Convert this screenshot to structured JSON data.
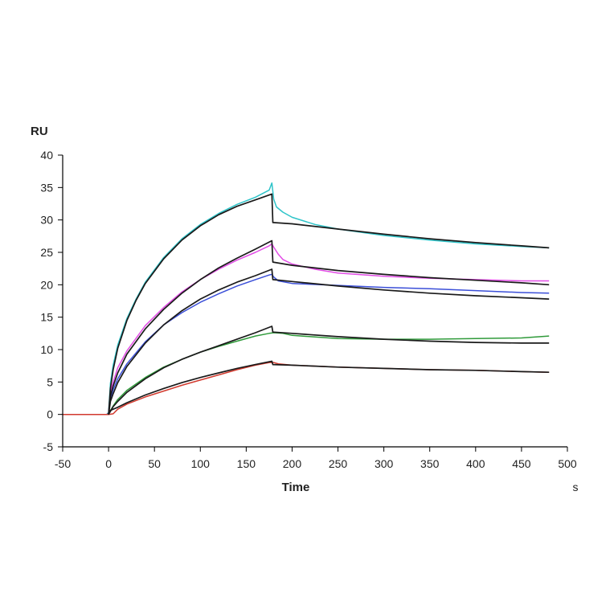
{
  "chart_data": {
    "type": "line",
    "title": "",
    "xlabel": "Time",
    "xunit": "s",
    "ylabel": "RU",
    "xlim": [
      -50,
      500
    ],
    "ylim": [
      -5,
      40
    ],
    "xticks": [
      -50,
      0,
      50,
      100,
      150,
      200,
      250,
      300,
      350,
      400,
      450,
      500
    ],
    "yticks": [
      -5,
      0,
      5,
      10,
      15,
      20,
      25,
      30,
      35,
      40
    ],
    "grid": false,
    "legend": "none",
    "series": [
      {
        "color": "#2ec4c9",
        "style": "data",
        "points": [
          [
            -50,
            0
          ],
          [
            -2,
            0
          ],
          [
            0,
            0.3
          ],
          [
            2,
            4.8
          ],
          [
            5,
            7.6
          ],
          [
            10,
            10.7
          ],
          [
            20,
            14.8
          ],
          [
            30,
            17.8
          ],
          [
            40,
            20.4
          ],
          [
            60,
            24.2
          ],
          [
            80,
            27.1
          ],
          [
            100,
            29.3
          ],
          [
            120,
            31.0
          ],
          [
            140,
            32.4
          ],
          [
            160,
            33.5
          ],
          [
            175,
            34.6
          ],
          [
            178,
            35.7
          ],
          [
            180,
            33.2
          ],
          [
            183,
            32.0
          ],
          [
            190,
            31.2
          ],
          [
            200,
            30.4
          ],
          [
            225,
            29.3
          ],
          [
            250,
            28.6
          ],
          [
            300,
            27.6
          ],
          [
            350,
            26.9
          ],
          [
            400,
            26.3
          ],
          [
            450,
            25.9
          ],
          [
            480,
            25.7
          ]
        ]
      },
      {
        "color": "#e24ce6",
        "style": "data",
        "points": [
          [
            -50,
            0
          ],
          [
            -2,
            0
          ],
          [
            0,
            0.2
          ],
          [
            2,
            3.5
          ],
          [
            5,
            5.0
          ],
          [
            10,
            7.2
          ],
          [
            20,
            9.8
          ],
          [
            40,
            13.7
          ],
          [
            60,
            16.5
          ],
          [
            80,
            18.9
          ],
          [
            100,
            20.8
          ],
          [
            120,
            22.4
          ],
          [
            140,
            23.8
          ],
          [
            160,
            25.0
          ],
          [
            175,
            26.0
          ],
          [
            178,
            26.3
          ],
          [
            180,
            25.8
          ],
          [
            185,
            24.7
          ],
          [
            190,
            23.9
          ],
          [
            200,
            23.2
          ],
          [
            225,
            22.4
          ],
          [
            250,
            21.8
          ],
          [
            300,
            21.3
          ],
          [
            350,
            21.0
          ],
          [
            400,
            20.8
          ],
          [
            450,
            20.6
          ],
          [
            480,
            20.6
          ]
        ]
      },
      {
        "color": "#3b4fd8",
        "style": "data",
        "points": [
          [
            -50,
            0
          ],
          [
            -2,
            0
          ],
          [
            0,
            0.2
          ],
          [
            2,
            2.5
          ],
          [
            5,
            3.8
          ],
          [
            10,
            5.5
          ],
          [
            20,
            7.8
          ],
          [
            40,
            11.2
          ],
          [
            60,
            13.8
          ],
          [
            80,
            15.7
          ],
          [
            100,
            17.3
          ],
          [
            120,
            18.6
          ],
          [
            140,
            19.8
          ],
          [
            160,
            20.8
          ],
          [
            175,
            21.5
          ],
          [
            178,
            21.6
          ],
          [
            180,
            21.2
          ],
          [
            185,
            20.6
          ],
          [
            200,
            20.2
          ],
          [
            250,
            19.9
          ],
          [
            300,
            19.6
          ],
          [
            350,
            19.4
          ],
          [
            400,
            19.1
          ],
          [
            450,
            18.8
          ],
          [
            480,
            18.7
          ]
        ]
      },
      {
        "color": "#2f9a3a",
        "style": "data",
        "points": [
          [
            -50,
            0
          ],
          [
            -2,
            0
          ],
          [
            0,
            0.1
          ],
          [
            5,
            1.3
          ],
          [
            10,
            2.3
          ],
          [
            20,
            3.7
          ],
          [
            40,
            5.7
          ],
          [
            60,
            7.3
          ],
          [
            80,
            8.5
          ],
          [
            100,
            9.6
          ],
          [
            120,
            10.5
          ],
          [
            140,
            11.3
          ],
          [
            160,
            12.1
          ],
          [
            175,
            12.5
          ],
          [
            180,
            12.6
          ],
          [
            190,
            12.5
          ],
          [
            200,
            12.2
          ],
          [
            250,
            11.7
          ],
          [
            300,
            11.6
          ],
          [
            350,
            11.6
          ],
          [
            400,
            11.7
          ],
          [
            450,
            11.8
          ],
          [
            480,
            12.1
          ]
        ]
      },
      {
        "color": "#d23a2e",
        "style": "data",
        "points": [
          [
            -50,
            0
          ],
          [
            -2,
            0
          ],
          [
            0,
            0
          ],
          [
            5,
            0.1
          ],
          [
            10,
            0.8
          ],
          [
            20,
            1.6
          ],
          [
            40,
            2.7
          ],
          [
            60,
            3.6
          ],
          [
            80,
            4.5
          ],
          [
            100,
            5.3
          ],
          [
            120,
            6.1
          ],
          [
            140,
            6.9
          ],
          [
            160,
            7.6
          ],
          [
            175,
            8.0
          ],
          [
            180,
            8.0
          ],
          [
            185,
            7.8
          ],
          [
            200,
            7.6
          ],
          [
            250,
            7.3
          ],
          [
            300,
            7.1
          ],
          [
            350,
            6.9
          ],
          [
            400,
            6.8
          ],
          [
            450,
            6.6
          ],
          [
            480,
            6.5
          ]
        ]
      },
      {
        "color": "#1a1a1a",
        "style": "fit",
        "points": [
          [
            0,
            0
          ],
          [
            2,
            4.0
          ],
          [
            5,
            6.9
          ],
          [
            10,
            10.2
          ],
          [
            20,
            14.5
          ],
          [
            30,
            17.6
          ],
          [
            40,
            20.2
          ],
          [
            60,
            24.0
          ],
          [
            80,
            26.9
          ],
          [
            100,
            29.1
          ],
          [
            120,
            30.8
          ],
          [
            140,
            32.1
          ],
          [
            160,
            33.1
          ],
          [
            178,
            34.0
          ],
          [
            179,
            29.6
          ],
          [
            200,
            29.4
          ],
          [
            250,
            28.6
          ],
          [
            300,
            27.8
          ],
          [
            350,
            27.1
          ],
          [
            400,
            26.5
          ],
          [
            450,
            26.0
          ],
          [
            480,
            25.7
          ]
        ]
      },
      {
        "color": "#1a1a1a",
        "style": "fit",
        "points": [
          [
            0,
            0
          ],
          [
            2,
            2.8
          ],
          [
            5,
            4.4
          ],
          [
            10,
            6.4
          ],
          [
            20,
            9.3
          ],
          [
            40,
            13.2
          ],
          [
            60,
            16.2
          ],
          [
            80,
            18.7
          ],
          [
            100,
            20.8
          ],
          [
            120,
            22.6
          ],
          [
            140,
            24.1
          ],
          [
            160,
            25.5
          ],
          [
            178,
            26.8
          ],
          [
            179,
            23.5
          ],
          [
            200,
            23.0
          ],
          [
            250,
            22.2
          ],
          [
            300,
            21.6
          ],
          [
            350,
            21.1
          ],
          [
            400,
            20.7
          ],
          [
            450,
            20.3
          ],
          [
            480,
            20.0
          ]
        ]
      },
      {
        "color": "#1a1a1a",
        "style": "fit",
        "points": [
          [
            0,
            0
          ],
          [
            2,
            2.0
          ],
          [
            5,
            3.2
          ],
          [
            10,
            4.9
          ],
          [
            20,
            7.4
          ],
          [
            40,
            11.0
          ],
          [
            60,
            13.8
          ],
          [
            80,
            16.0
          ],
          [
            100,
            17.8
          ],
          [
            120,
            19.2
          ],
          [
            140,
            20.4
          ],
          [
            160,
            21.4
          ],
          [
            178,
            22.4
          ],
          [
            179,
            20.8
          ],
          [
            200,
            20.5
          ],
          [
            250,
            19.8
          ],
          [
            300,
            19.2
          ],
          [
            350,
            18.7
          ],
          [
            400,
            18.3
          ],
          [
            450,
            18.0
          ],
          [
            480,
            17.8
          ]
        ]
      },
      {
        "color": "#1a1a1a",
        "style": "fit",
        "points": [
          [
            0,
            0
          ],
          [
            5,
            1.2
          ],
          [
            10,
            2.0
          ],
          [
            20,
            3.4
          ],
          [
            40,
            5.5
          ],
          [
            60,
            7.2
          ],
          [
            80,
            8.5
          ],
          [
            100,
            9.6
          ],
          [
            120,
            10.6
          ],
          [
            140,
            11.6
          ],
          [
            160,
            12.6
          ],
          [
            178,
            13.6
          ],
          [
            179,
            12.7
          ],
          [
            200,
            12.5
          ],
          [
            250,
            12.0
          ],
          [
            300,
            11.6
          ],
          [
            350,
            11.3
          ],
          [
            400,
            11.1
          ],
          [
            450,
            11.0
          ],
          [
            480,
            11.0
          ]
        ]
      },
      {
        "color": "#1a1a1a",
        "style": "fit",
        "points": [
          [
            0,
            0.5
          ],
          [
            10,
            1.1
          ],
          [
            20,
            1.8
          ],
          [
            40,
            3.0
          ],
          [
            60,
            4.0
          ],
          [
            80,
            4.9
          ],
          [
            100,
            5.7
          ],
          [
            120,
            6.4
          ],
          [
            140,
            7.1
          ],
          [
            160,
            7.7
          ],
          [
            178,
            8.2
          ],
          [
            179,
            7.7
          ],
          [
            200,
            7.6
          ],
          [
            250,
            7.3
          ],
          [
            300,
            7.1
          ],
          [
            350,
            6.9
          ],
          [
            400,
            6.8
          ],
          [
            450,
            6.6
          ],
          [
            480,
            6.5
          ]
        ]
      }
    ]
  }
}
